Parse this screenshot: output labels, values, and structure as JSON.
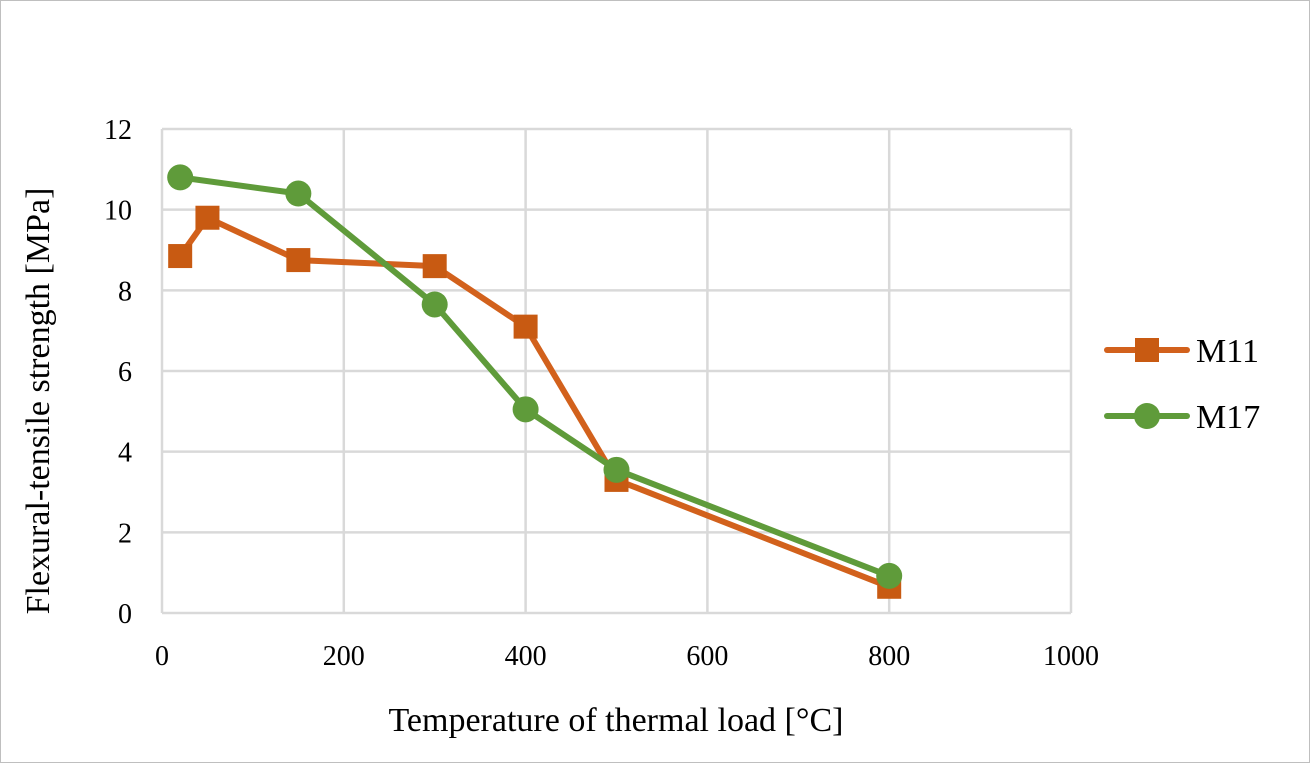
{
  "chart_data": {
    "type": "line",
    "title": "",
    "xlabel": "Temperature of thermal load [°C]",
    "ylabel": "Flexural-tensile strength [MPa]",
    "xlim": [
      0,
      1000
    ],
    "ylim": [
      0,
      12
    ],
    "xticks": [
      0,
      200,
      400,
      600,
      800,
      1000
    ],
    "yticks": [
      0,
      2,
      4,
      6,
      8,
      10,
      12
    ],
    "grid": true,
    "legend_position": "right",
    "series": [
      {
        "name": "M11",
        "color": "#d2611c",
        "marker": "square",
        "x": [
          20,
          50,
          150,
          300,
          400,
          500,
          800
        ],
        "y": [
          8.85,
          9.8,
          8.75,
          8.6,
          7.1,
          3.3,
          0.65
        ]
      },
      {
        "name": "M17",
        "color": "#5f9b3a",
        "marker": "circle",
        "x": [
          20,
          150,
          300,
          400,
          500,
          800
        ],
        "y": [
          10.8,
          10.4,
          7.65,
          5.05,
          3.55,
          0.92
        ]
      }
    ]
  }
}
